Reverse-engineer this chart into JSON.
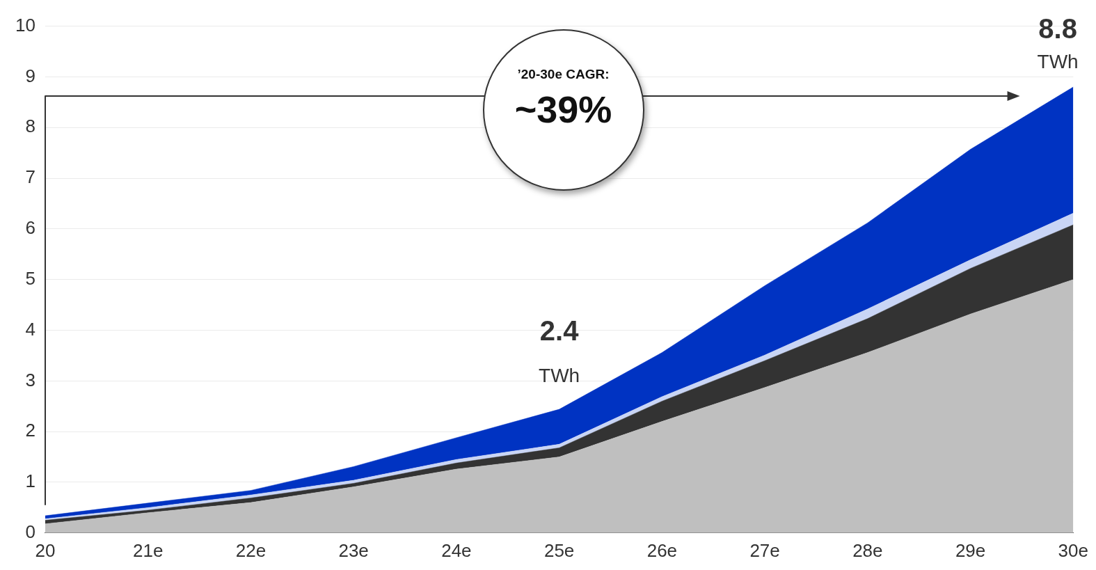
{
  "chart_data": {
    "type": "area",
    "stacked": true,
    "categories": [
      "20",
      "21e",
      "22e",
      "23e",
      "24e",
      "25e",
      "26e",
      "27e",
      "28e",
      "29e",
      "30e"
    ],
    "series": [
      {
        "color": "#bfbfbf",
        "values": [
          0.18,
          0.4,
          0.6,
          0.91,
          1.26,
          1.5,
          2.2,
          2.87,
          3.56,
          4.32,
          5.0
        ]
      },
      {
        "color": "#333333",
        "values": [
          0.07,
          0.05,
          0.09,
          0.07,
          0.12,
          0.18,
          0.4,
          0.53,
          0.67,
          0.9,
          1.08
        ]
      },
      {
        "color": "#c9d5f5",
        "values": [
          0.03,
          0.05,
          0.06,
          0.06,
          0.07,
          0.07,
          0.09,
          0.11,
          0.19,
          0.17,
          0.23
        ]
      },
      {
        "color": "#0033c2",
        "values": [
          0.06,
          0.09,
          0.09,
          0.27,
          0.43,
          0.69,
          0.87,
          1.37,
          1.7,
          2.18,
          2.49
        ]
      }
    ],
    "ylim": [
      0,
      10
    ],
    "yticks": [
      0,
      1,
      2,
      3,
      4,
      5,
      6,
      7,
      8,
      9,
      10
    ],
    "grid": "y",
    "legend": false,
    "annotations": [
      "’20-30e CAGR:",
      "~39%",
      "2.4",
      "TWh",
      "8.8",
      "TWh"
    ]
  }
}
